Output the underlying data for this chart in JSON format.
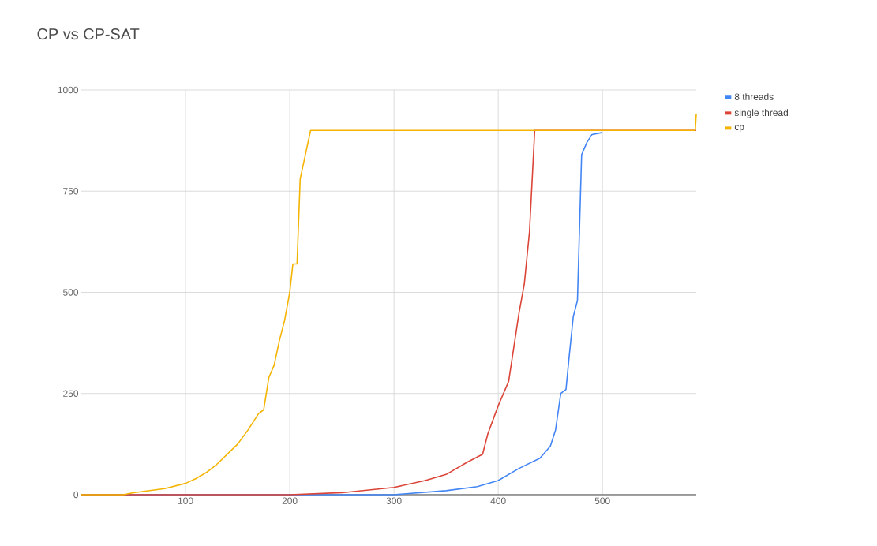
{
  "chart_data": {
    "type": "line",
    "title": "CP vs CP-SAT",
    "xlim": [
      0,
      590
    ],
    "ylim": [
      0,
      1000
    ],
    "xticks": [
      100,
      200,
      300,
      400,
      500
    ],
    "yticks": [
      0,
      250,
      500,
      750,
      1000
    ],
    "grid": true,
    "legend": "right",
    "marker": "none",
    "line_style": "solid",
    "series": [
      {
        "name": "8 threads",
        "color": "#4285f4",
        "x": [
          0,
          300,
          350,
          380,
          400,
          420,
          440,
          450,
          455,
          460,
          465,
          468,
          472,
          476,
          480,
          485,
          490,
          500
        ],
        "values": [
          0,
          0,
          10,
          20,
          35,
          65,
          90,
          120,
          160,
          250,
          260,
          340,
          440,
          480,
          840,
          870,
          890,
          895
        ]
      },
      {
        "name": "single thread",
        "color": "#db4437",
        "x": [
          0,
          200,
          250,
          300,
          330,
          350,
          370,
          385,
          390,
          400,
          410,
          420,
          425,
          430,
          435,
          590
        ],
        "values": [
          0,
          0,
          5,
          18,
          35,
          50,
          80,
          100,
          150,
          220,
          280,
          450,
          520,
          650,
          900,
          900
        ]
      },
      {
        "name": "cp",
        "color": "#f4b400",
        "x": [
          0,
          40,
          50,
          80,
          100,
          110,
          120,
          130,
          140,
          150,
          160,
          170,
          175,
          180,
          185,
          190,
          195,
          200,
          203,
          207,
          210,
          215,
          220,
          589,
          590
        ],
        "values": [
          0,
          0,
          5,
          15,
          28,
          40,
          55,
          75,
          100,
          125,
          160,
          200,
          210,
          290,
          320,
          380,
          430,
          500,
          570,
          570,
          780,
          840,
          900,
          900,
          940
        ]
      }
    ]
  }
}
